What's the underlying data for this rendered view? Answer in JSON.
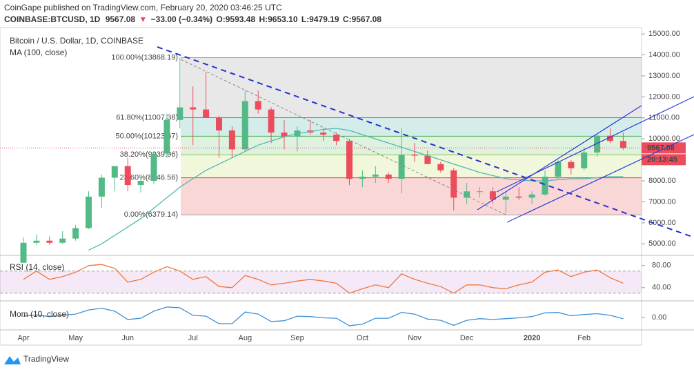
{
  "header": {
    "published": "CoinGape published on TradingView.com, February 20, 2020 03:46:25 UTC",
    "symbol": "COINBASE:BTCUSD, 1D",
    "last": "9567.08",
    "arrow": "▼",
    "change": "−33.00 (−0.34%)",
    "open": "O:9593.48",
    "high": "H:9653.10",
    "low": "L:9479.19",
    "close": "C:9567.08"
  },
  "footer": {
    "brand": "TradingView"
  },
  "chart_data": {
    "type": "candlestick",
    "title": "Bitcoin / U.S. Dollar, 1D, COINBASE",
    "categories": [
      "Apr",
      null,
      null,
      null,
      "May",
      null,
      null,
      null,
      "Jun",
      null,
      null,
      null,
      null,
      "Jul",
      null,
      null,
      null,
      "Aug",
      null,
      null,
      null,
      "Sep",
      null,
      null,
      null,
      null,
      "Oct",
      null,
      null,
      null,
      "Nov",
      null,
      null,
      null,
      "Dec",
      null,
      null,
      null,
      null,
      "2020",
      null,
      null,
      null,
      "Feb",
      null,
      null,
      null
    ],
    "candles": {
      "up_color": "#53b987",
      "down_color": "#eb4d5c",
      "open": [
        4100,
        5050,
        5150,
        5050,
        5250,
        5750,
        7250,
        8150,
        8700,
        7800,
        8000,
        9300,
        10900,
        11500,
        11400,
        11000,
        10400,
        9500,
        11800,
        11400,
        10300,
        10100,
        10400,
        10300,
        10200,
        9900,
        8100,
        8200,
        8300,
        8100,
        9250,
        9200,
        8800,
        8500,
        7200,
        7500,
        7500,
        7100,
        7250,
        7200,
        7350,
        8200,
        8900,
        8600,
        9350,
        10150,
        9900
      ],
      "high": [
        5300,
        5450,
        5350,
        5600,
        5900,
        7500,
        8300,
        8700,
        9100,
        8200,
        9400,
        11200,
        13868,
        12500,
        13200,
        11100,
        10600,
        12300,
        12300,
        11500,
        10900,
        10600,
        10900,
        10500,
        10300,
        10000,
        8500,
        8700,
        8400,
        10500,
        9800,
        9450,
        8900,
        8600,
        7900,
        7700,
        7700,
        7500,
        7700,
        7500,
        8500,
        9000,
        9000,
        9600,
        10200,
        10500,
        10300
      ],
      "low": [
        4100,
        4950,
        4950,
        5000,
        5150,
        5700,
        6700,
        7500,
        7500,
        7450,
        7850,
        9100,
        10500,
        9700,
        11000,
        9100,
        9100,
        9400,
        11200,
        9800,
        9500,
        9400,
        10200,
        9900,
        9700,
        7800,
        7700,
        7900,
        7900,
        7400,
        8900,
        8800,
        8400,
        6600,
        6900,
        7200,
        6900,
        6450,
        7100,
        6900,
        7300,
        8100,
        8300,
        8500,
        9150,
        9800,
        9479
      ],
      "close": [
        5050,
        5150,
        5050,
        5250,
        5750,
        7250,
        8150,
        8700,
        7800,
        8000,
        9300,
        10900,
        11500,
        11400,
        11000,
        10400,
        9500,
        11800,
        11400,
        10300,
        10100,
        10400,
        10300,
        10200,
        9900,
        8100,
        8200,
        8300,
        8100,
        9250,
        9200,
        8800,
        8500,
        7200,
        7500,
        7500,
        7100,
        7250,
        7200,
        7350,
        8200,
        8900,
        8600,
        9350,
        10150,
        9900,
        9567.08
      ]
    },
    "ma": {
      "name": "MA (100, close)",
      "color": "#4fb8b0",
      "values": [
        null,
        null,
        null,
        null,
        null,
        4700,
        5000,
        5400,
        5800,
        6200,
        6700,
        7200,
        7700,
        8100,
        8500,
        8800,
        9100,
        9400,
        9700,
        9900,
        10100,
        10250,
        10350,
        10450,
        10500,
        10400,
        10200,
        10000,
        9800,
        9600,
        9400,
        9200,
        9000,
        8800,
        8600,
        8400,
        8250,
        8100,
        8050,
        8000,
        8000,
        8050,
        8100,
        8100,
        8150,
        8200,
        8200
      ]
    },
    "ylim": [
      4450,
      15300
    ],
    "yticks": [
      {
        "value": 5000,
        "label": "5000.00"
      },
      {
        "value": 6000,
        "label": "6000.00"
      },
      {
        "value": 7000,
        "label": "7000.00"
      },
      {
        "value": 8000,
        "label": "8000.00"
      },
      {
        "value": 9000,
        "label": "9000.00"
      },
      {
        "value": 10000,
        "label": "10000.00"
      },
      {
        "value": 11000,
        "label": "11000.00"
      },
      {
        "value": 12000,
        "label": "12000.00"
      },
      {
        "value": 13000,
        "label": "13000.00"
      },
      {
        "value": 14000,
        "label": "14000.00"
      },
      {
        "value": 15000,
        "label": "15000.00"
      }
    ],
    "countdown": "20:13:45",
    "fib": [
      {
        "value": 13868.19,
        "label": "100.00%(13868.19)",
        "color": "#9e9e9e"
      },
      {
        "value": 11007.38,
        "label": "61.80%(11007.38)",
        "color": "#26a69a"
      },
      {
        "value": 10123.67,
        "label": "50.00%(10123.67)",
        "color": "#4caf50"
      },
      {
        "value": 9239.96,
        "label": "38.20%(9239.96)",
        "color": "#8bc34a"
      },
      {
        "value": 8146.56,
        "label": "23.60%(8146.56)",
        "color": "#e53935"
      },
      {
        "value": 6379.14,
        "label": "0.00%(6379.14)",
        "color": "#9e9e9e"
      }
    ],
    "fib_fills": [
      "rgba(150,150,150,0.22)",
      "rgba(38,166,154,0.2)",
      "rgba(76,175,80,0.18)",
      "rgba(200,225,110,0.25)",
      "rgba(229,57,53,0.2)"
    ],
    "rsi": {
      "name": "RSI (14, close)",
      "color": "#f0763a",
      "ylim": [
        21,
        96
      ],
      "yticks": [
        {
          "value": 80,
          "label": "80.00"
        },
        {
          "value": 40,
          "label": "40.00"
        }
      ],
      "bands": [
        70,
        30
      ],
      "values": [
        55,
        70,
        55,
        60,
        68,
        80,
        82,
        75,
        50,
        55,
        68,
        78,
        70,
        55,
        60,
        42,
        40,
        62,
        55,
        45,
        48,
        52,
        55,
        52,
        48,
        30,
        38,
        45,
        40,
        65,
        55,
        48,
        42,
        30,
        45,
        45,
        40,
        38,
        45,
        50,
        68,
        72,
        60,
        68,
        72,
        58,
        48
      ]
    },
    "mom": {
      "name": "Mom (10, close)",
      "color": "#3d8fd6",
      "ylim": [
        -3000,
        3800
      ],
      "yticks": [
        {
          "value": 0,
          "label": "0.00"
        }
      ],
      "values": [
        300,
        600,
        200,
        500,
        800,
        1800,
        2200,
        1500,
        -500,
        -200,
        1500,
        2500,
        2300,
        500,
        300,
        -1500,
        -1500,
        1300,
        800,
        -1000,
        -800,
        300,
        200,
        -100,
        -200,
        -2000,
        -1600,
        -200,
        -200,
        1200,
        800,
        -400,
        -700,
        -1900,
        -700,
        -300,
        -500,
        -300,
        -100,
        200,
        1100,
        1200,
        400,
        700,
        900,
        500,
        -300
      ]
    }
  }
}
